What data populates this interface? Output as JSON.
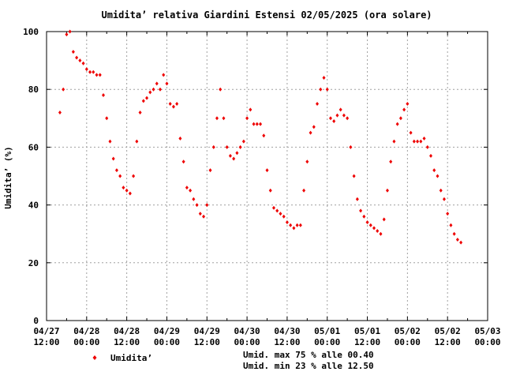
{
  "chart_data": {
    "type": "scatter",
    "title": "Umidita’ relativa Giardini Estensi 02/05/2025 (ora solare)",
    "ylabel": "Umidita’ (%)",
    "xlabel": "",
    "ylim": [
      0,
      100
    ],
    "yticks": [
      "0",
      "20",
      "40",
      "60",
      "80",
      "100"
    ],
    "xlim": [
      "2025-04-27 12:00",
      "2025-05-03 00:00"
    ],
    "xticks": [
      {
        "date": "04/27",
        "time": "12:00"
      },
      {
        "date": "04/28",
        "time": "00:00"
      },
      {
        "date": "04/28",
        "time": "12:00"
      },
      {
        "date": "04/29",
        "time": "00:00"
      },
      {
        "date": "04/29",
        "time": "12:00"
      },
      {
        "date": "04/30",
        "time": "00:00"
      },
      {
        "date": "04/30",
        "time": "12:00"
      },
      {
        "date": "05/01",
        "time": "00:00"
      },
      {
        "date": "05/01",
        "time": "12:00"
      },
      {
        "date": "05/02",
        "time": "00:00"
      },
      {
        "date": "05/02",
        "time": "12:00"
      },
      {
        "date": "05/03",
        "time": "00:00"
      }
    ],
    "grid": true,
    "legend_position": "bottom-left",
    "series": [
      {
        "name": "Umidita’",
        "color": "#ee0000",
        "marker": "diamond",
        "x": [
          "2025-04-27 16:00",
          "2025-04-27 17:00",
          "2025-04-27 18:00",
          "2025-04-27 19:00",
          "2025-04-27 20:00",
          "2025-04-27 21:00",
          "2025-04-27 22:00",
          "2025-04-27 23:00",
          "2025-04-28 00:00",
          "2025-04-28 01:00",
          "2025-04-28 02:00",
          "2025-04-28 03:00",
          "2025-04-28 04:00",
          "2025-04-28 05:00",
          "2025-04-28 06:00",
          "2025-04-28 07:00",
          "2025-04-28 08:00",
          "2025-04-28 09:00",
          "2025-04-28 10:00",
          "2025-04-28 11:00",
          "2025-04-28 12:00",
          "2025-04-28 13:00",
          "2025-04-28 14:00",
          "2025-04-28 15:00",
          "2025-04-28 16:00",
          "2025-04-28 17:00",
          "2025-04-28 18:00",
          "2025-04-28 19:00",
          "2025-04-28 20:00",
          "2025-04-28 21:00",
          "2025-04-28 22:00",
          "2025-04-28 23:00",
          "2025-04-29 00:00",
          "2025-04-29 01:00",
          "2025-04-29 02:00",
          "2025-04-29 03:00",
          "2025-04-29 04:00",
          "2025-04-29 05:00",
          "2025-04-29 06:00",
          "2025-04-29 07:00",
          "2025-04-29 08:00",
          "2025-04-29 09:00",
          "2025-04-29 10:00",
          "2025-04-29 11:00",
          "2025-04-29 12:00",
          "2025-04-29 13:00",
          "2025-04-29 14:00",
          "2025-04-29 15:00",
          "2025-04-29 16:00",
          "2025-04-29 17:00",
          "2025-04-29 18:00",
          "2025-04-29 19:00",
          "2025-04-29 20:00",
          "2025-04-29 21:00",
          "2025-04-29 22:00",
          "2025-04-29 23:00",
          "2025-04-30 00:00",
          "2025-04-30 01:00",
          "2025-04-30 02:00",
          "2025-04-30 03:00",
          "2025-04-30 04:00",
          "2025-04-30 05:00",
          "2025-04-30 06:00",
          "2025-04-30 07:00",
          "2025-04-30 08:00",
          "2025-04-30 09:00",
          "2025-04-30 10:00",
          "2025-04-30 11:00",
          "2025-04-30 12:00",
          "2025-04-30 13:00",
          "2025-04-30 14:00",
          "2025-04-30 15:00",
          "2025-04-30 16:00",
          "2025-04-30 17:00",
          "2025-04-30 18:00",
          "2025-04-30 19:00",
          "2025-04-30 20:00",
          "2025-04-30 21:00",
          "2025-04-30 22:00",
          "2025-04-30 23:00",
          "2025-05-01 00:00",
          "2025-05-01 01:00",
          "2025-05-01 02:00",
          "2025-05-01 03:00",
          "2025-05-01 04:00",
          "2025-05-01 05:00",
          "2025-05-01 06:00",
          "2025-05-01 07:00",
          "2025-05-01 08:00",
          "2025-05-01 09:00",
          "2025-05-01 10:00",
          "2025-05-01 11:00",
          "2025-05-01 12:00",
          "2025-05-01 13:00",
          "2025-05-01 14:00",
          "2025-05-01 15:00",
          "2025-05-01 16:00",
          "2025-05-01 17:00",
          "2025-05-01 18:00",
          "2025-05-01 19:00",
          "2025-05-01 20:00",
          "2025-05-01 21:00",
          "2025-05-01 22:00",
          "2025-05-01 23:00",
          "2025-05-02 00:00",
          "2025-05-02 01:00",
          "2025-05-02 02:00",
          "2025-05-02 03:00",
          "2025-05-02 04:00",
          "2025-05-02 05:00",
          "2025-05-02 06:00",
          "2025-05-02 07:00",
          "2025-05-02 08:00",
          "2025-05-02 09:00",
          "2025-05-02 10:00",
          "2025-05-02 11:00",
          "2025-05-02 12:00",
          "2025-05-02 13:00",
          "2025-05-02 14:00",
          "2025-05-02 15:00",
          "2025-05-02 16:00"
        ],
        "values": [
          72,
          80,
          99,
          100,
          93,
          91,
          90,
          89,
          87,
          86,
          86,
          85,
          85,
          78,
          70,
          62,
          56,
          52,
          50,
          46,
          45,
          44,
          50,
          62,
          72,
          76,
          77,
          79,
          80,
          82,
          80,
          85,
          82,
          75,
          74,
          75,
          63,
          55,
          46,
          45,
          42,
          40,
          37,
          36,
          40,
          52,
          60,
          70,
          80,
          70,
          60,
          57,
          56,
          58,
          60,
          62,
          70,
          73,
          68,
          68,
          68,
          64,
          52,
          45,
          39,
          38,
          37,
          36,
          34,
          33,
          32,
          33,
          33,
          45,
          55,
          65,
          67,
          75,
          80,
          84,
          80,
          70,
          69,
          71,
          73,
          71,
          70,
          60,
          50,
          42,
          38,
          36,
          34,
          33,
          32,
          31,
          30,
          35,
          45,
          55,
          62,
          68,
          70,
          73,
          75,
          65,
          62,
          62,
          62,
          63,
          60,
          57,
          52,
          50,
          45,
          42,
          37,
          33,
          30,
          28,
          27
        ]
      }
    ],
    "annotations": [
      "Umid. max 75 % alle 00.40",
      "Umid. min 23 % alle 12.50"
    ]
  }
}
